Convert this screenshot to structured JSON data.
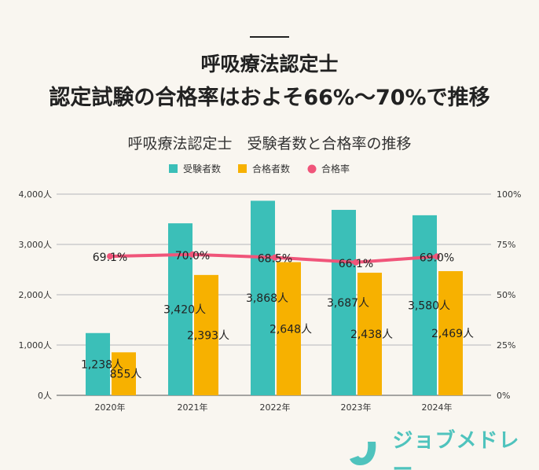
{
  "header": {
    "title_line1": "呼吸療法認定士",
    "title_line2": "認定試験の合格率はおよそ66%～70%で推移"
  },
  "logo": {
    "text": "ジョブメドレー"
  },
  "chart_data": {
    "type": "bar",
    "title": "呼吸療法認定士　受験者数と合格率の推移",
    "categories": [
      "2020年",
      "2021年",
      "2022年",
      "2023年",
      "2024年"
    ],
    "series": [
      {
        "name": "受験者数",
        "type": "bar",
        "axis": "left",
        "color": "#3bbfb8",
        "values": [
          1238,
          3420,
          3868,
          3687,
          3580
        ],
        "labels": [
          "1,238人",
          "3,420人",
          "3,868人",
          "3,687人",
          "3,580人"
        ]
      },
      {
        "name": "合格者数",
        "type": "bar",
        "axis": "left",
        "color": "#f7b100",
        "values": [
          855,
          2393,
          2648,
          2438,
          2469
        ],
        "labels": [
          "855人",
          "2,393人",
          "2,648人",
          "2,438人",
          "2,469人"
        ]
      },
      {
        "name": "合格率",
        "type": "line",
        "axis": "right",
        "color": "#f0557a",
        "values": [
          69.1,
          70.0,
          68.5,
          66.1,
          69.0
        ],
        "labels": [
          "69.1%",
          "70.0%",
          "68.5%",
          "66.1%",
          "69.0%"
        ]
      }
    ],
    "left_axis": {
      "ylim": [
        0,
        4000
      ],
      "ticks": [
        "0人",
        "1,000人",
        "2,000人",
        "3,000人",
        "4,000人"
      ]
    },
    "right_axis": {
      "ylim": [
        0,
        100
      ],
      "ticks": [
        "0%",
        "25%",
        "50%",
        "75%",
        "100%"
      ]
    },
    "legend": "top-center",
    "grid": true
  }
}
